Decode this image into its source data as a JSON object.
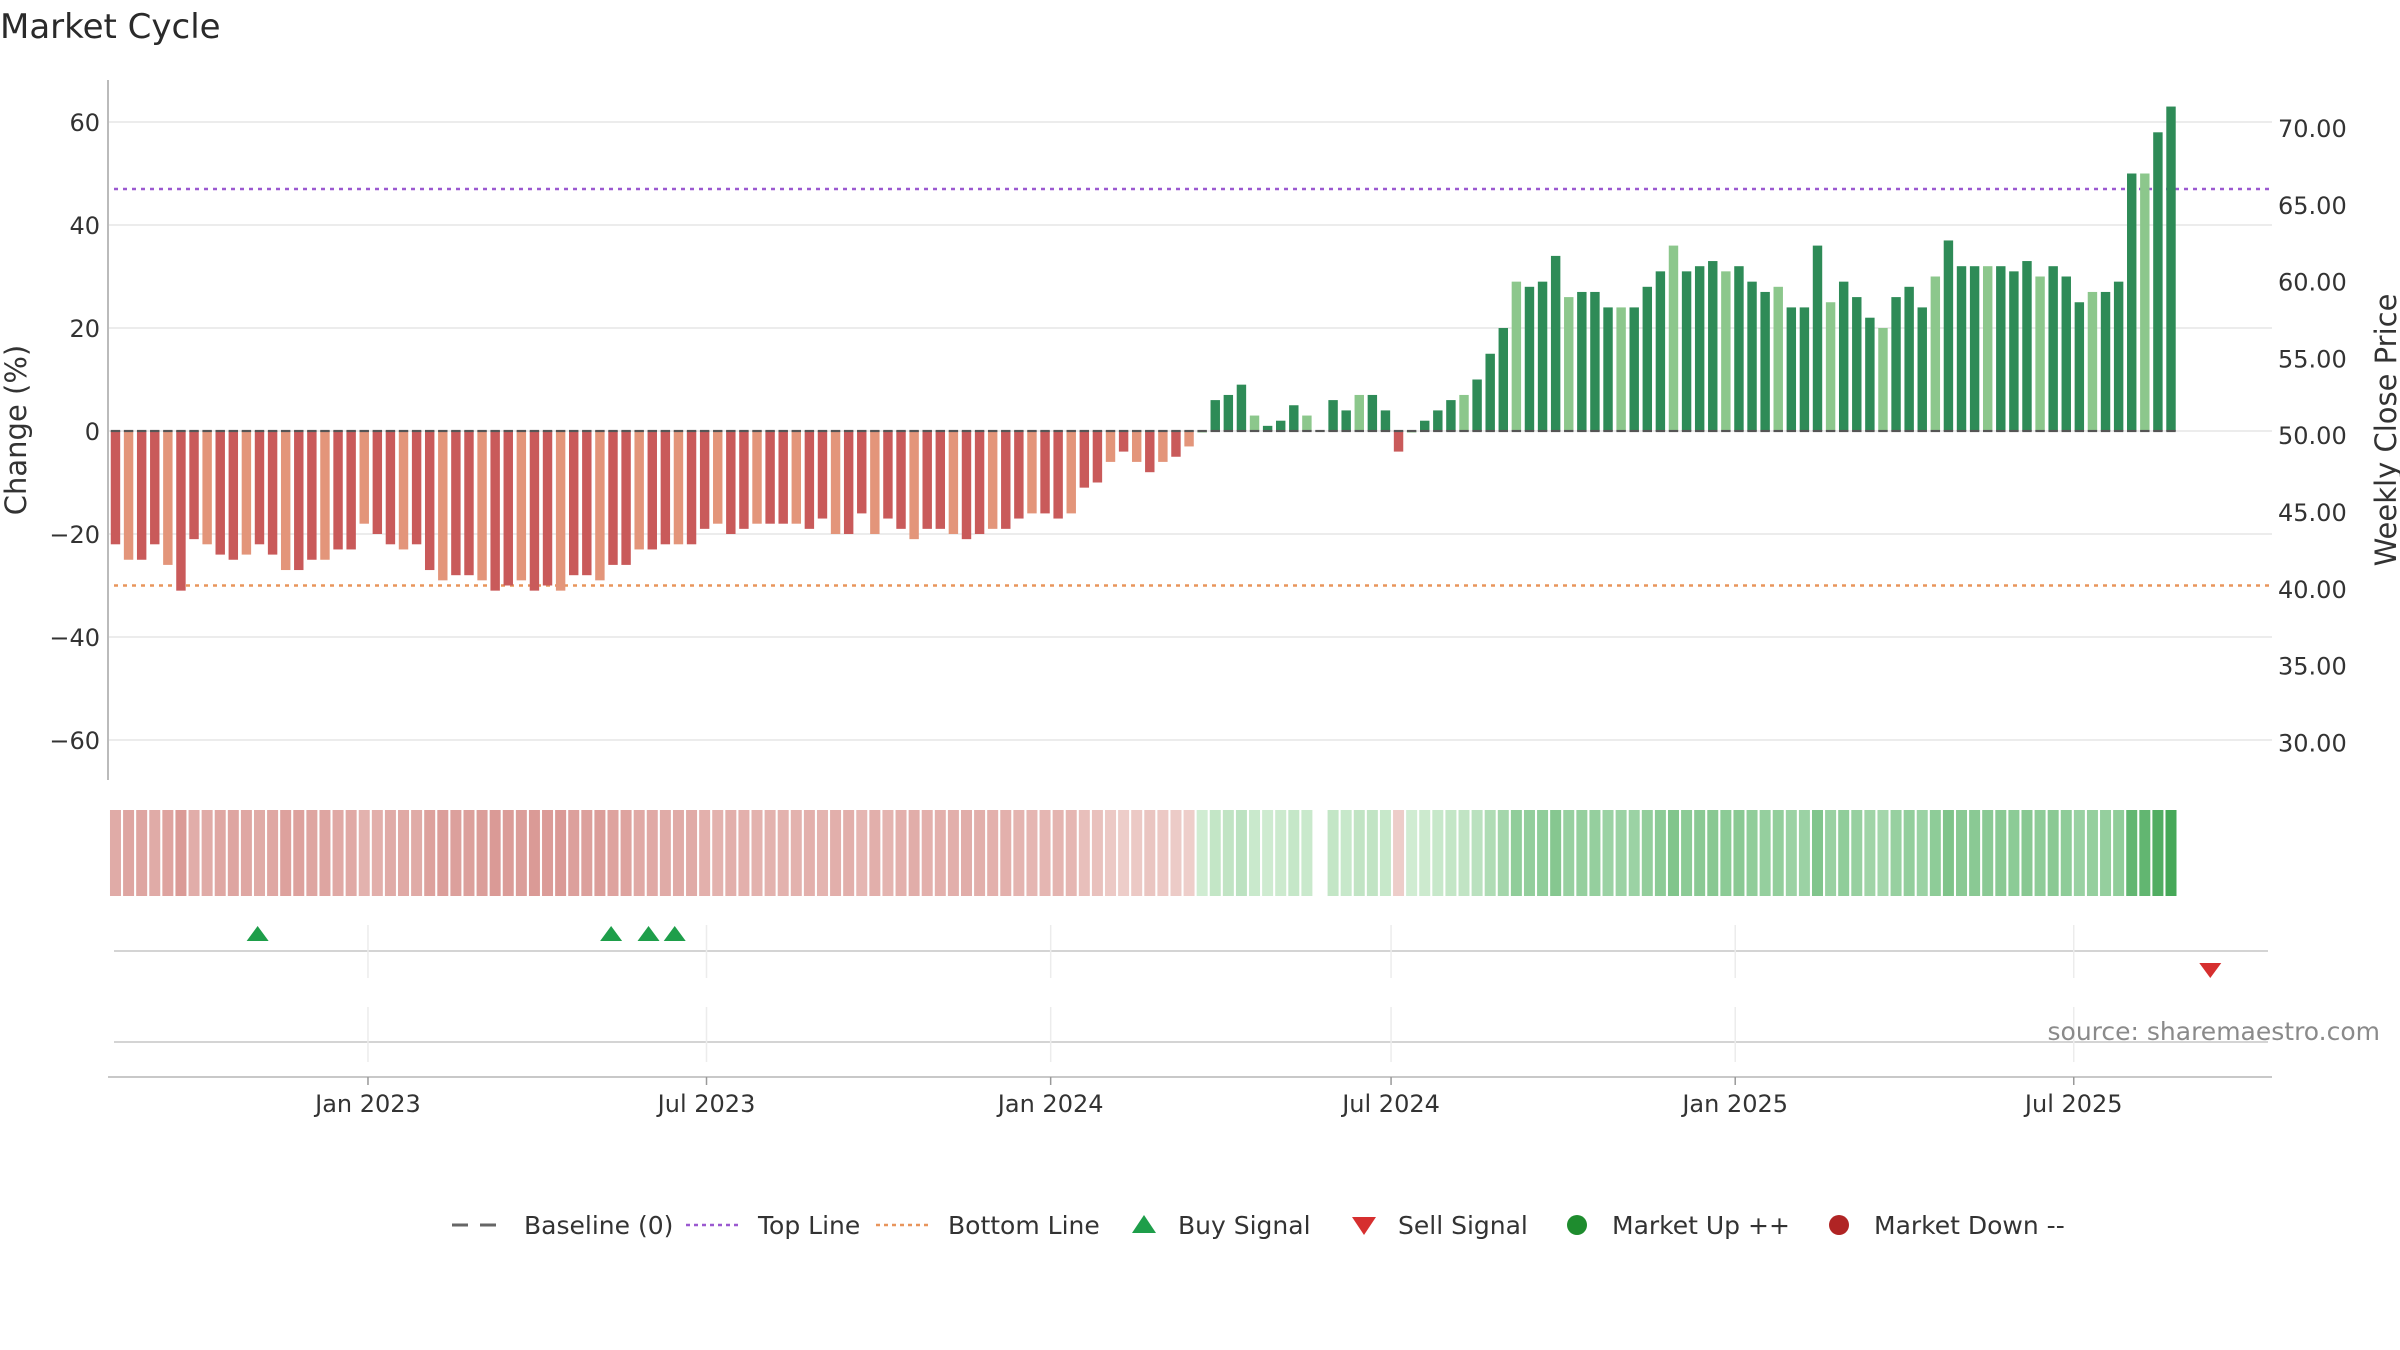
{
  "chart_data": {
    "type": "bar",
    "title": "Market Cycle",
    "ylabel_left": "Change (%)",
    "ylabel_right": "Weekly Close Price",
    "source": "source: sharemaestro.com",
    "left_ticks": [
      60,
      40,
      20,
      0,
      -20,
      -40,
      -60
    ],
    "left_tick_labels": [
      "60",
      "40",
      "20",
      "0",
      "−20",
      "−40",
      "−60"
    ],
    "right_ticks": [
      "70.00",
      "65.00",
      "60.00",
      "55.00",
      "50.00",
      "45.00",
      "40.00",
      "35.00",
      "30.00"
    ],
    "x_ticks": [
      "Jan 2023",
      "Jul 2023",
      "Jan 2024",
      "Jul 2024",
      "Jan 2025",
      "Jul 2025"
    ],
    "ylim": [
      -68,
      68
    ],
    "top_line": 47,
    "bottom_line": -30,
    "values": [
      -22,
      -25,
      -25,
      -22,
      -26,
      -31,
      -21,
      -22,
      -24,
      -25,
      -24,
      -22,
      -24,
      -27,
      -27,
      -25,
      -25,
      -23,
      -23,
      -18,
      -20,
      -22,
      -23,
      -22,
      -27,
      -29,
      -28,
      -28,
      -29,
      -31,
      -30,
      -29,
      -31,
      -30,
      -31,
      -28,
      -28,
      -29,
      -26,
      -26,
      -23,
      -23,
      -22,
      -22,
      -22,
      -19,
      -18,
      -20,
      -19,
      -18,
      -18,
      -18,
      -18,
      -19,
      -17,
      -20,
      -20,
      -16,
      -20,
      -17,
      -19,
      -21,
      -19,
      -19,
      -20,
      -21,
      -20,
      -19,
      -19,
      -17,
      -16,
      -16,
      -17,
      -16,
      -11,
      -10,
      -6,
      -4,
      -6,
      -8,
      -6,
      -5,
      -3,
      0,
      6,
      7,
      9,
      3,
      1,
      2,
      5,
      3,
      null,
      6,
      4,
      7,
      7,
      4,
      -4,
      0,
      2,
      4,
      6,
      7,
      10,
      15,
      20,
      29,
      28,
      29,
      34,
      26,
      27,
      27,
      24,
      24,
      24,
      28,
      31,
      36,
      31,
      32,
      33,
      31,
      32,
      29,
      27,
      28,
      24,
      24,
      36,
      25,
      29,
      26,
      22,
      20,
      26,
      28,
      24,
      30,
      37,
      32,
      32,
      32,
      32,
      31,
      33,
      30,
      32,
      30,
      25,
      27,
      27,
      29,
      50,
      50,
      58,
      63
    ],
    "signals": {
      "buy": [
        "2022-11-03",
        "2023-05-11",
        "2023-05-31",
        "2023-06-14"
      ],
      "sell": [
        "2025-09-12"
      ]
    },
    "x_start": "2022-08-15",
    "x_end": "2025-10-15",
    "first_bar": "2022-08-19",
    "bar_spacing_days": 7,
    "x_tick_dates": [
      "2023-01-01",
      "2023-07-01",
      "2024-01-01",
      "2024-07-01",
      "2025-01-01",
      "2025-07-01"
    ],
    "legend": [
      {
        "label": "Baseline (0)",
        "marker": "dash",
        "color": "#666666"
      },
      {
        "label": "Top Line",
        "marker": "dotted",
        "color": "#9b59d0"
      },
      {
        "label": "Bottom Line",
        "marker": "dotted",
        "color": "#e8955c"
      },
      {
        "label": "Buy Signal",
        "marker": "triangle-up",
        "color": "#1e9e4a"
      },
      {
        "label": "Sell Signal",
        "marker": "triangle-down",
        "color": "#d62f2f"
      },
      {
        "label": "Market Up ++",
        "marker": "circle",
        "color": "#1e8c2e"
      },
      {
        "label": "Market Down --",
        "marker": "circle",
        "color": "#b02424"
      }
    ],
    "colors": {
      "down_dark": "#c95a5a",
      "down_light": "#e3957a",
      "up_dark": "#2e8b57",
      "up_light": "#8cc78c",
      "top_line": "#9b59d0",
      "bottom_line": "#e8955c",
      "baseline": "#555555"
    }
  }
}
